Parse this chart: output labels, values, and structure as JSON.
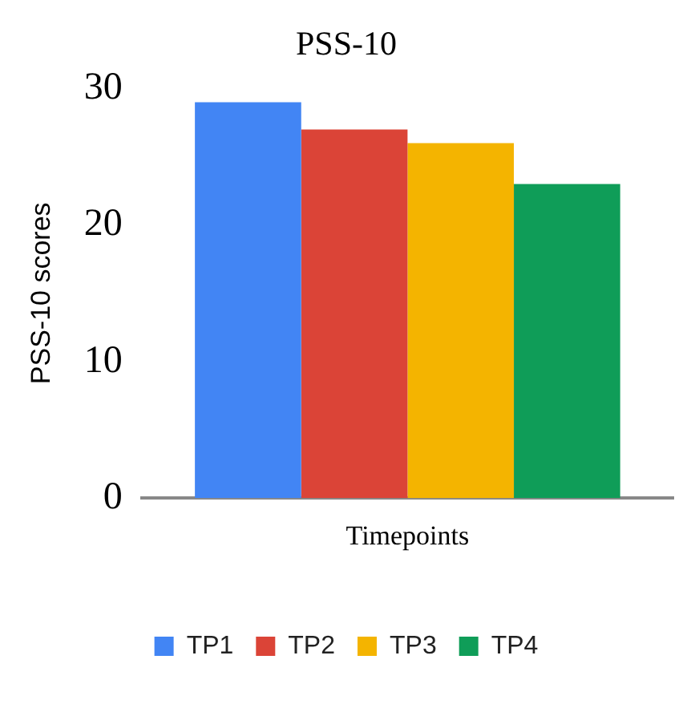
{
  "chart_data": {
    "type": "bar",
    "title": "PSS-10",
    "xlabel": "Timepoints",
    "ylabel": "PSS-10 scores",
    "categories": [
      null
    ],
    "series": [
      {
        "name": "TP1",
        "color": "#4285f4",
        "values": [
          29
        ]
      },
      {
        "name": "TP2",
        "color": "#db4437",
        "values": [
          27
        ]
      },
      {
        "name": "TP3",
        "color": "#f4b400",
        "values": [
          26
        ]
      },
      {
        "name": "TP4",
        "color": "#0f9d58",
        "values": [
          23
        ]
      }
    ],
    "ylim": [
      0,
      30
    ],
    "yticks": [
      0,
      10,
      20,
      30
    ],
    "grid": false,
    "legend": "bottom"
  }
}
